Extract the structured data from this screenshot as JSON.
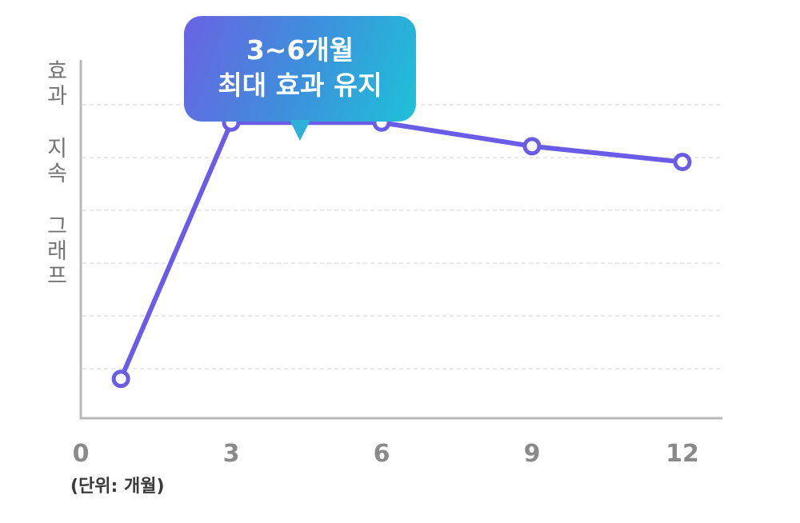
{
  "chart_data": {
    "type": "line",
    "ylabel": "효과 지속 그래프",
    "unit_note": "(단위: 개월)",
    "x_ticks": [
      "0",
      "3",
      "6",
      "9",
      "12"
    ],
    "xlim": [
      0,
      12
    ],
    "ylim": [
      0,
      100
    ],
    "grid": true,
    "series": [
      {
        "x": [
          0.8,
          3,
          6,
          9,
          12
        ],
        "values": [
          10,
          75,
          75,
          69,
          65
        ]
      }
    ],
    "annotation": {
      "line1": "3~6개월",
      "line2": "최대 효과 유지"
    },
    "colors": {
      "line": "#6b5ce7",
      "axis": "#b8b8b8",
      "grid": "#d9d9d9",
      "tick_text": "#8a8a8a",
      "ylabel_text": "#747474"
    }
  }
}
